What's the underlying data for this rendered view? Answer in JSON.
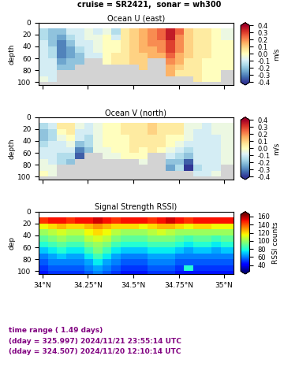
{
  "title": "cruise = SR2421,  sonar = wh300",
  "annotations": [
    "time range ( 1.49 days)",
    "(dday = 325.997) 2024/11/21 23:55:14 UTC",
    "(dday = 324.507) 2024/11/20 12:10:14 UTC"
  ],
  "chart_data": [
    {
      "type": "heatmap",
      "title": "Ocean U (east)",
      "y_label": "depth",
      "color": "RdYlBu_r",
      "tick_labels": "y",
      "xlim": [
        33.98,
        35.05
      ],
      "ylim": [
        105,
        0
      ],
      "xticks": [
        34,
        34.25,
        34.5,
        34.75,
        35
      ],
      "yticks": [
        0,
        20,
        40,
        60,
        80,
        100
      ],
      "x_edges": [
        33.98,
        34.03,
        34.08,
        34.13,
        34.18,
        34.23,
        34.28,
        34.33,
        34.38,
        34.43,
        34.48,
        34.53,
        34.58,
        34.63,
        34.68,
        34.73,
        34.78,
        34.83,
        34.88,
        34.93,
        34.98,
        35.05
      ],
      "depth_edges": [
        10,
        20,
        30,
        40,
        50,
        60,
        70,
        80,
        90,
        100,
        105
      ],
      "cells": [
        [
          -0.15,
          -0.2,
          -0.2,
          -0.1,
          -0.1,
          -0.05,
          -0.1,
          -0.05,
          -0.15,
          0.05,
          0.1,
          0.15,
          0.2,
          0.25,
          0.35,
          0.25,
          0.1,
          0.05,
          0.05,
          0.0,
          -0.05
        ],
        [
          -0.15,
          -0.2,
          -0.25,
          -0.15,
          -0.1,
          -0.05,
          -0.05,
          0.0,
          -0.1,
          0.05,
          0.1,
          0.15,
          0.2,
          0.25,
          0.35,
          0.2,
          0.1,
          0.05,
          0.05,
          0.0,
          -0.05
        ],
        [
          -0.1,
          -0.2,
          -0.3,
          -0.2,
          -0.1,
          -0.1,
          -0.05,
          0.0,
          0.0,
          0.05,
          0.1,
          0.15,
          0.2,
          0.2,
          0.3,
          0.2,
          0.1,
          0.05,
          0.05,
          0.0,
          0.0
        ],
        [
          -0.1,
          -0.15,
          -0.3,
          -0.25,
          -0.15,
          -0.1,
          -0.05,
          0.0,
          0.0,
          0.05,
          0.1,
          0.15,
          0.15,
          0.2,
          0.3,
          0.2,
          0.1,
          0.05,
          0.05,
          0.0,
          0.0
        ],
        [
          -0.1,
          -0.15,
          -0.3,
          -0.25,
          -0.2,
          -0.1,
          -0.1,
          0.0,
          0.05,
          0.05,
          0.1,
          0.1,
          0.15,
          0.15,
          0.25,
          0.15,
          0.1,
          0.05,
          0.05,
          0.0,
          0.0
        ],
        [
          -0.1,
          -0.1,
          -0.25,
          -0.2,
          -0.2,
          null,
          null,
          0.0,
          0.05,
          0.05,
          0.1,
          0.1,
          null,
          null,
          0.2,
          0.15,
          0.05,
          0.05,
          0.0,
          0.0,
          0.0
        ],
        [
          -0.1,
          -0.1,
          -0.2,
          -0.2,
          null,
          null,
          null,
          null,
          null,
          null,
          null,
          0.1,
          null,
          null,
          0.15,
          0.1,
          0.05,
          0.05,
          0.0,
          0.0,
          0.0
        ],
        [
          -0.1,
          -0.1,
          null,
          null,
          null,
          null,
          null,
          null,
          null,
          null,
          null,
          null,
          null,
          null,
          0.15,
          0.05,
          0.05,
          0.05,
          0.0,
          0.0,
          null
        ],
        [
          -0.05,
          -0.1,
          null,
          null,
          null,
          null,
          null,
          null,
          null,
          null,
          null,
          null,
          null,
          null,
          null,
          null,
          null,
          0.05,
          0.0,
          0.0,
          null
        ],
        [
          null,
          null,
          null,
          null,
          null,
          null,
          null,
          null,
          null,
          null,
          null,
          null,
          null,
          null,
          null,
          null,
          null,
          null,
          null,
          null,
          null
        ]
      ],
      "clim": [
        -0.4,
        0.4
      ],
      "cticks": [
        -0.4,
        -0.3,
        -0.2,
        -0.1,
        0.0,
        0.1,
        0.2,
        0.3,
        0.4
      ],
      "cbar_label": "m/s"
    },
    {
      "type": "heatmap",
      "title": "Ocean V (north)",
      "y_label": "depth",
      "color": "RdYlBu_r",
      "tick_labels": "y",
      "xlim": [
        33.98,
        35.05
      ],
      "ylim": [
        105,
        0
      ],
      "xticks": [
        34,
        34.25,
        34.5,
        34.75,
        35
      ],
      "yticks": [
        0,
        20,
        40,
        60,
        80,
        100
      ],
      "x_edges": [
        33.98,
        34.03,
        34.08,
        34.13,
        34.18,
        34.23,
        34.28,
        34.33,
        34.38,
        34.43,
        34.48,
        34.53,
        34.58,
        34.63,
        34.68,
        34.73,
        34.78,
        34.83,
        34.88,
        34.93,
        34.98,
        35.05
      ],
      "depth_edges": [
        10,
        20,
        30,
        40,
        50,
        60,
        70,
        80,
        90,
        100,
        105
      ],
      "cells": [
        [
          -0.15,
          -0.1,
          0.05,
          0.05,
          -0.05,
          -0.1,
          -0.05,
          0.0,
          0.0,
          0.05,
          0.05,
          0.05,
          0.1,
          0.05,
          0.05,
          0.05,
          -0.05,
          -0.05,
          -0.1,
          -0.05,
          -0.05
        ],
        [
          -0.2,
          -0.15,
          0.0,
          0.05,
          -0.1,
          -0.1,
          -0.05,
          0.0,
          0.0,
          0.05,
          0.05,
          0.05,
          0.1,
          0.05,
          0.05,
          0.05,
          -0.05,
          -0.1,
          -0.1,
          -0.05,
          -0.05
        ],
        [
          -0.2,
          -0.15,
          -0.05,
          0.0,
          -0.1,
          -0.15,
          -0.05,
          0.0,
          0.0,
          0.0,
          0.05,
          0.05,
          0.05,
          0.05,
          0.0,
          0.0,
          -0.05,
          -0.1,
          -0.1,
          -0.1,
          -0.05
        ],
        [
          -0.15,
          -0.1,
          -0.1,
          -0.05,
          -0.2,
          -0.15,
          -0.05,
          0.0,
          0.0,
          0.0,
          0.05,
          0.05,
          0.05,
          0.05,
          0.0,
          -0.05,
          -0.1,
          -0.1,
          -0.1,
          -0.1,
          -0.05
        ],
        [
          -0.1,
          -0.1,
          -0.1,
          -0.1,
          -0.3,
          -0.2,
          -0.05,
          -0.05,
          0.0,
          0.0,
          0.05,
          0.0,
          0.05,
          0.0,
          -0.05,
          -0.1,
          -0.15,
          -0.1,
          -0.1,
          -0.1,
          -0.05
        ],
        [
          -0.1,
          -0.1,
          -0.15,
          -0.15,
          -0.35,
          null,
          null,
          -0.05,
          -0.05,
          0.0,
          0.0,
          0.0,
          null,
          null,
          -0.1,
          -0.15,
          -0.2,
          -0.1,
          -0.1,
          -0.1,
          -0.05
        ],
        [
          -0.05,
          -0.1,
          -0.15,
          -0.2,
          null,
          null,
          null,
          null,
          null,
          null,
          null,
          -0.05,
          null,
          null,
          -0.2,
          -0.2,
          -0.35,
          -0.1,
          -0.1,
          -0.1,
          -0.05
        ],
        [
          -0.05,
          -0.05,
          null,
          null,
          null,
          null,
          null,
          null,
          null,
          null,
          null,
          null,
          null,
          null,
          -0.25,
          -0.15,
          -0.4,
          -0.15,
          -0.1,
          -0.1,
          null
        ],
        [
          0.0,
          -0.05,
          null,
          null,
          null,
          null,
          null,
          null,
          null,
          null,
          null,
          null,
          null,
          null,
          null,
          null,
          null,
          -0.1,
          -0.1,
          -0.05,
          null
        ],
        [
          null,
          null,
          null,
          null,
          null,
          null,
          null,
          null,
          null,
          null,
          null,
          null,
          null,
          null,
          null,
          null,
          null,
          null,
          null,
          null,
          null
        ]
      ],
      "clim": [
        -0.4,
        0.4
      ],
      "cticks": [
        -0.4,
        -0.3,
        -0.2,
        -0.1,
        0.0,
        0.1,
        0.2,
        0.3,
        0.4
      ],
      "cbar_label": "m/s"
    },
    {
      "type": "heatmap",
      "title": "Signal Strength RSSI)",
      "y_label": "dep",
      "color": "jet",
      "xlim": [
        33.98,
        35.05
      ],
      "ylim": [
        105,
        0
      ],
      "xticks": [
        {
          "value": 34,
          "label": "34°N"
        },
        {
          "value": 34.25,
          "label": "34.25°N"
        },
        {
          "value": 34.5,
          "label": "34.5°N"
        },
        {
          "value": 34.75,
          "label": "34.75°N"
        },
        {
          "value": 35,
          "label": "35°N"
        }
      ],
      "yticks": [
        0,
        20,
        40,
        60,
        80,
        100
      ],
      "x_edges": [
        33.98,
        34.03,
        34.08,
        34.13,
        34.18,
        34.23,
        34.28,
        34.33,
        34.38,
        34.43,
        34.48,
        34.53,
        34.58,
        34.63,
        34.68,
        34.73,
        34.78,
        34.83,
        34.88,
        34.93,
        34.98,
        35.05
      ],
      "depth_edges": [
        10,
        20,
        30,
        40,
        50,
        60,
        70,
        80,
        90,
        100,
        105
      ],
      "cells": [
        [
          145,
          150,
          150,
          145,
          150,
          150,
          155,
          150,
          145,
          150,
          150,
          150,
          145,
          150,
          155,
          150,
          145,
          150,
          150,
          150,
          150
        ],
        [
          115,
          120,
          125,
          120,
          120,
          125,
          130,
          125,
          120,
          120,
          120,
          115,
          120,
          125,
          125,
          120,
          115,
          120,
          120,
          115,
          115
        ],
        [
          100,
          105,
          110,
          105,
          105,
          115,
          120,
          115,
          105,
          100,
          100,
          100,
          105,
          110,
          105,
          100,
          100,
          100,
          100,
          100,
          100
        ],
        [
          90,
          95,
          100,
          95,
          95,
          105,
          110,
          105,
          95,
          90,
          90,
          90,
          95,
          95,
          95,
          90,
          85,
          90,
          90,
          85,
          90
        ],
        [
          80,
          85,
          90,
          85,
          85,
          95,
          100,
          95,
          85,
          80,
          80,
          80,
          85,
          85,
          85,
          80,
          75,
          80,
          80,
          75,
          80
        ],
        [
          70,
          75,
          80,
          75,
          75,
          85,
          95,
          85,
          75,
          70,
          70,
          70,
          75,
          75,
          75,
          70,
          65,
          70,
          70,
          65,
          70
        ],
        [
          60,
          65,
          70,
          65,
          65,
          75,
          85,
          75,
          65,
          60,
          60,
          60,
          65,
          65,
          65,
          60,
          60,
          60,
          60,
          60,
          60
        ],
        [
          55,
          60,
          60,
          60,
          60,
          65,
          75,
          65,
          60,
          55,
          55,
          55,
          60,
          60,
          60,
          55,
          55,
          55,
          55,
          55,
          55
        ],
        [
          50,
          55,
          55,
          55,
          55,
          60,
          65,
          60,
          55,
          50,
          50,
          50,
          55,
          55,
          55,
          50,
          80,
          50,
          50,
          50,
          50
        ],
        [
          45,
          50,
          50,
          50,
          50,
          55,
          60,
          55,
          50,
          45,
          45,
          45,
          50,
          50,
          50,
          45,
          45,
          45,
          45,
          45,
          45
        ]
      ],
      "clim": [
        25,
        165
      ],
      "cticks": [
        40,
        60,
        80,
        100,
        120,
        140,
        160
      ],
      "cbar_label": "RSSI counts"
    }
  ]
}
